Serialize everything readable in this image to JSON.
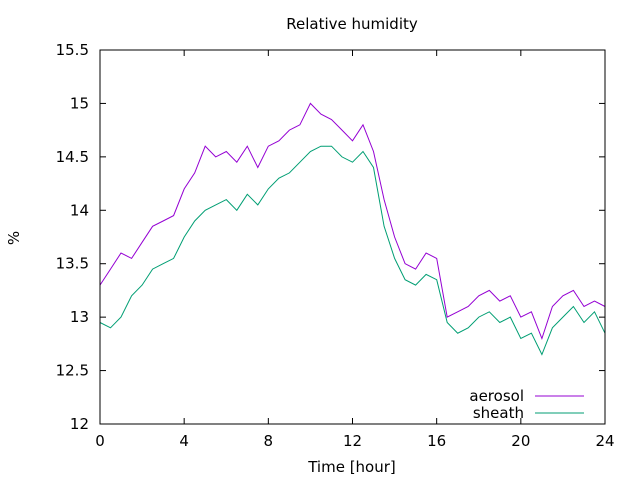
{
  "chart_data": {
    "type": "line",
    "title": "Relative humidity",
    "xlabel": "Time [hour]",
    "ylabel": "%",
    "xlim": [
      0,
      24
    ],
    "ylim": [
      12,
      15.5
    ],
    "xticks": [
      0,
      4,
      8,
      12,
      16,
      20,
      24
    ],
    "xtick_labels": [
      "0",
      "4",
      "8",
      "12",
      "16",
      "20",
      "24"
    ],
    "yticks": [
      12,
      12.5,
      13,
      13.5,
      14,
      14.5,
      15,
      15.5
    ],
    "ytick_labels": [
      "12",
      "12.5",
      "13",
      "13.5",
      "14",
      "14.5",
      "15",
      "15.5"
    ],
    "grid": false,
    "legend_position": "bottom-right",
    "series": [
      {
        "name": "aerosol",
        "color": "#9400d3",
        "x": [
          0,
          0.5,
          1,
          1.5,
          2,
          2.5,
          3,
          3.5,
          4,
          4.5,
          5,
          5.5,
          6,
          6.5,
          7,
          7.5,
          8,
          8.5,
          9,
          9.5,
          10,
          10.5,
          11,
          11.5,
          12,
          12.5,
          13,
          13.5,
          14,
          14.5,
          15,
          15.5,
          16,
          16.5,
          17,
          17.5,
          18,
          18.5,
          19,
          19.5,
          20,
          20.5,
          21,
          21.5,
          22,
          22.5,
          23,
          23.5,
          24
        ],
        "y": [
          13.3,
          13.45,
          13.6,
          13.55,
          13.7,
          13.85,
          13.9,
          13.95,
          14.2,
          14.35,
          14.6,
          14.5,
          14.55,
          14.45,
          14.6,
          14.4,
          14.6,
          14.65,
          14.75,
          14.8,
          15.0,
          14.9,
          14.85,
          14.75,
          14.65,
          14.8,
          14.55,
          14.1,
          13.75,
          13.5,
          13.45,
          13.6,
          13.55,
          13.0,
          13.05,
          13.1,
          13.2,
          13.25,
          13.15,
          13.2,
          13.0,
          13.05,
          12.8,
          13.1,
          13.2,
          13.25,
          13.1,
          13.15,
          13.1
        ]
      },
      {
        "name": "sheath",
        "color": "#009e73",
        "x": [
          0,
          0.5,
          1,
          1.5,
          2,
          2.5,
          3,
          3.5,
          4,
          4.5,
          5,
          5.5,
          6,
          6.5,
          7,
          7.5,
          8,
          8.5,
          9,
          9.5,
          10,
          10.5,
          11,
          11.5,
          12,
          12.5,
          13,
          13.5,
          14,
          14.5,
          15,
          15.5,
          16,
          16.5,
          17,
          17.5,
          18,
          18.5,
          19,
          19.5,
          20,
          20.5,
          21,
          21.5,
          22,
          22.5,
          23,
          23.5,
          24
        ],
        "y": [
          12.95,
          12.9,
          13.0,
          13.2,
          13.3,
          13.45,
          13.5,
          13.55,
          13.75,
          13.9,
          14.0,
          14.05,
          14.1,
          14.0,
          14.15,
          14.05,
          14.2,
          14.3,
          14.35,
          14.45,
          14.55,
          14.6,
          14.6,
          14.5,
          14.45,
          14.55,
          14.4,
          13.85,
          13.55,
          13.35,
          13.3,
          13.4,
          13.35,
          12.95,
          12.85,
          12.9,
          13.0,
          13.05,
          12.95,
          13.0,
          12.8,
          12.85,
          12.65,
          12.9,
          13.0,
          13.1,
          12.95,
          13.05,
          12.85
        ]
      }
    ]
  }
}
